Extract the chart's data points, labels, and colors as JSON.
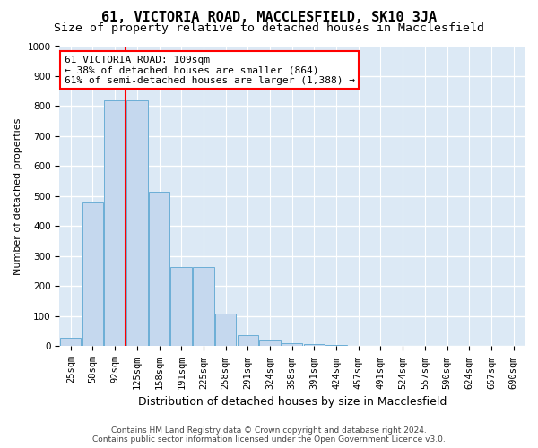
{
  "title": "61, VICTORIA ROAD, MACCLESFIELD, SK10 3JA",
  "subtitle": "Size of property relative to detached houses in Macclesfield",
  "xlabel": "Distribution of detached houses by size in Macclesfield",
  "ylabel": "Number of detached properties",
  "footer_line1": "Contains HM Land Registry data © Crown copyright and database right 2024.",
  "footer_line2": "Contains public sector information licensed under the Open Government Licence v3.0.",
  "bar_labels": [
    "25sqm",
    "58sqm",
    "92sqm",
    "125sqm",
    "158sqm",
    "191sqm",
    "225sqm",
    "258sqm",
    "291sqm",
    "324sqm",
    "358sqm",
    "391sqm",
    "424sqm",
    "457sqm",
    "491sqm",
    "524sqm",
    "557sqm",
    "590sqm",
    "624sqm",
    "657sqm",
    "690sqm"
  ],
  "bar_values": [
    28,
    480,
    820,
    820,
    515,
    265,
    265,
    110,
    38,
    20,
    10,
    7,
    4,
    1,
    0,
    0,
    0,
    0,
    0,
    0,
    0
  ],
  "bar_color": "#c5d8ee",
  "bar_edge_color": "#6baed6",
  "vline_color": "red",
  "vline_x_index": 2.5,
  "annotation_line1": "61 VICTORIA ROAD: 109sqm",
  "annotation_line2": "← 38% of detached houses are smaller (864)",
  "annotation_line3": "61% of semi-detached houses are larger (1,388) →",
  "annotation_box_facecolor": "white",
  "annotation_box_edgecolor": "red",
  "ylim": [
    0,
    1000
  ],
  "yticks": [
    0,
    100,
    200,
    300,
    400,
    500,
    600,
    700,
    800,
    900,
    1000
  ],
  "plot_bg_color": "#dce9f5",
  "grid_color": "white",
  "title_fontsize": 11,
  "subtitle_fontsize": 9.5,
  "ylabel_fontsize": 8,
  "xlabel_fontsize": 9,
  "tick_fontsize": 7.5,
  "annotation_fontsize": 8,
  "footer_fontsize": 6.5
}
